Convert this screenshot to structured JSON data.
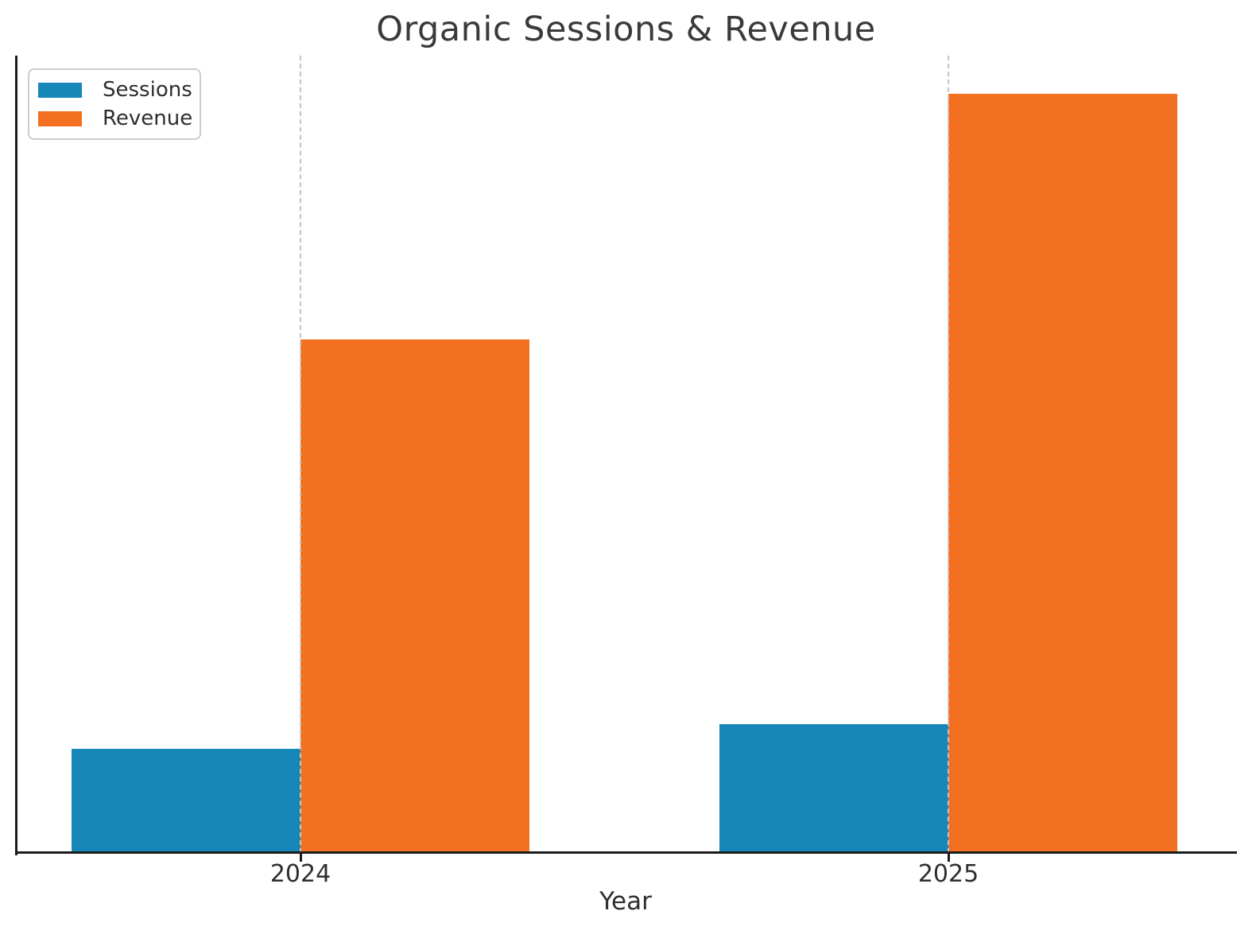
{
  "colors": {
    "sessions": "#1787b9",
    "revenue": "#f37021",
    "spine": "#1c1c1c",
    "gridline": "#c4c4c4",
    "title_text": "#3a3a3a",
    "axis_text": "#2e2e2e",
    "legend_border": "#cccccc"
  },
  "chart_data": {
    "type": "bar",
    "title": "Organic Sessions & Revenue",
    "xlabel": "Year",
    "ylabel": "",
    "categories": [
      "2024",
      "2025"
    ],
    "series": [
      {
        "name": "Sessions",
        "color": "#1787b9",
        "values": [
          13.7,
          17.0
        ]
      },
      {
        "name": "Revenue",
        "color": "#f37021",
        "values": [
          67.6,
          100.0
        ]
      }
    ],
    "value_units": "relative (% of tallest bar); y-axis has no tick labels",
    "ylim": [
      0,
      105
    ],
    "y_ticks": [],
    "grid": "vertical dashed lines at category centers only",
    "legend_position": "upper left",
    "spines": "left and bottom only"
  }
}
